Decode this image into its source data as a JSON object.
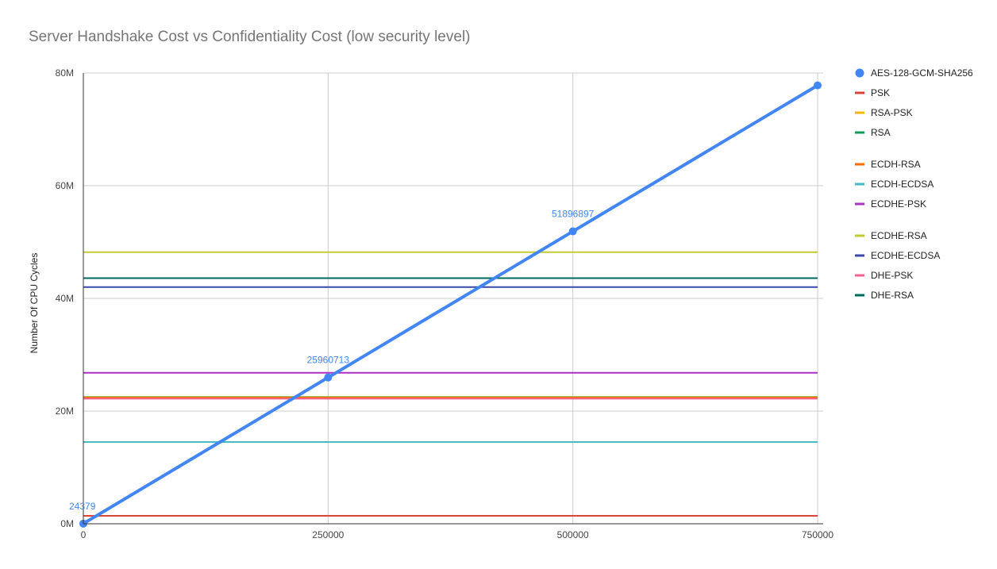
{
  "chart_data": {
    "type": "line",
    "title": "Server Handshake Cost vs Confidentiality Cost (low security level)",
    "xlabel": "",
    "ylabel": "Number Of CPU Cycles",
    "xlim": [
      0,
      750000
    ],
    "ylim": [
      0,
      80000000
    ],
    "x_ticks": [
      0,
      250000,
      500000,
      750000
    ],
    "x_tick_labels": [
      "0",
      "250000",
      "500000",
      "750000"
    ],
    "y_ticks": [
      0,
      20000000,
      40000000,
      60000000,
      80000000
    ],
    "y_tick_labels": [
      "0M",
      "20M",
      "40M",
      "60M",
      "80M"
    ],
    "grid": true,
    "legend_position": "right",
    "series": [
      {
        "name": "AES-128-GCM-SHA256",
        "color": "#4285f4",
        "x": [
          0,
          250000,
          500000,
          750000
        ],
        "values": [
          24379,
          25960713,
          51896897,
          77800000
        ],
        "markers": true,
        "data_labels": [
          "24379",
          "25960713",
          "51896897",
          ""
        ],
        "legend_gap_before": false
      },
      {
        "name": "PSK",
        "color": "#db4437",
        "x": [
          0,
          750000
        ],
        "values": [
          1400000,
          1400000
        ],
        "legend_gap_before": false
      },
      {
        "name": "RSA-PSK",
        "color": "#f4b400",
        "x": [
          0,
          750000
        ],
        "values": [
          22500000,
          22500000
        ],
        "legend_gap_before": false
      },
      {
        "name": "RSA",
        "color": "#0f9d58",
        "x": [
          0,
          750000
        ],
        "values": [
          22450000,
          22450000
        ],
        "legend_gap_before": false
      },
      {
        "name": "ECDH-RSA",
        "color": "#ff6d00",
        "x": [
          0,
          750000
        ],
        "values": [
          22400000,
          22400000
        ],
        "legend_gap_before": true
      },
      {
        "name": "ECDH-ECDSA",
        "color": "#46bdc6",
        "x": [
          0,
          750000
        ],
        "values": [
          14500000,
          14500000
        ],
        "legend_gap_before": false
      },
      {
        "name": "ECDHE-PSK",
        "color": "#ab30c4",
        "x": [
          0,
          750000
        ],
        "values": [
          26800000,
          26800000
        ],
        "legend_gap_before": false
      },
      {
        "name": "ECDHE-RSA",
        "color": "#c0ca33",
        "x": [
          0,
          750000
        ],
        "values": [
          48200000,
          48200000
        ],
        "legend_gap_before": true
      },
      {
        "name": "ECDHE-ECDSA",
        "color": "#3949ab",
        "x": [
          0,
          750000
        ],
        "values": [
          42000000,
          42000000
        ],
        "legend_gap_before": false
      },
      {
        "name": "DHE-PSK",
        "color": "#f06292",
        "x": [
          0,
          750000
        ],
        "values": [
          22200000,
          22200000
        ],
        "legend_gap_before": false
      },
      {
        "name": "DHE-RSA",
        "color": "#00695c",
        "x": [
          0,
          750000
        ],
        "values": [
          43600000,
          43600000
        ],
        "legend_gap_before": false
      }
    ]
  }
}
